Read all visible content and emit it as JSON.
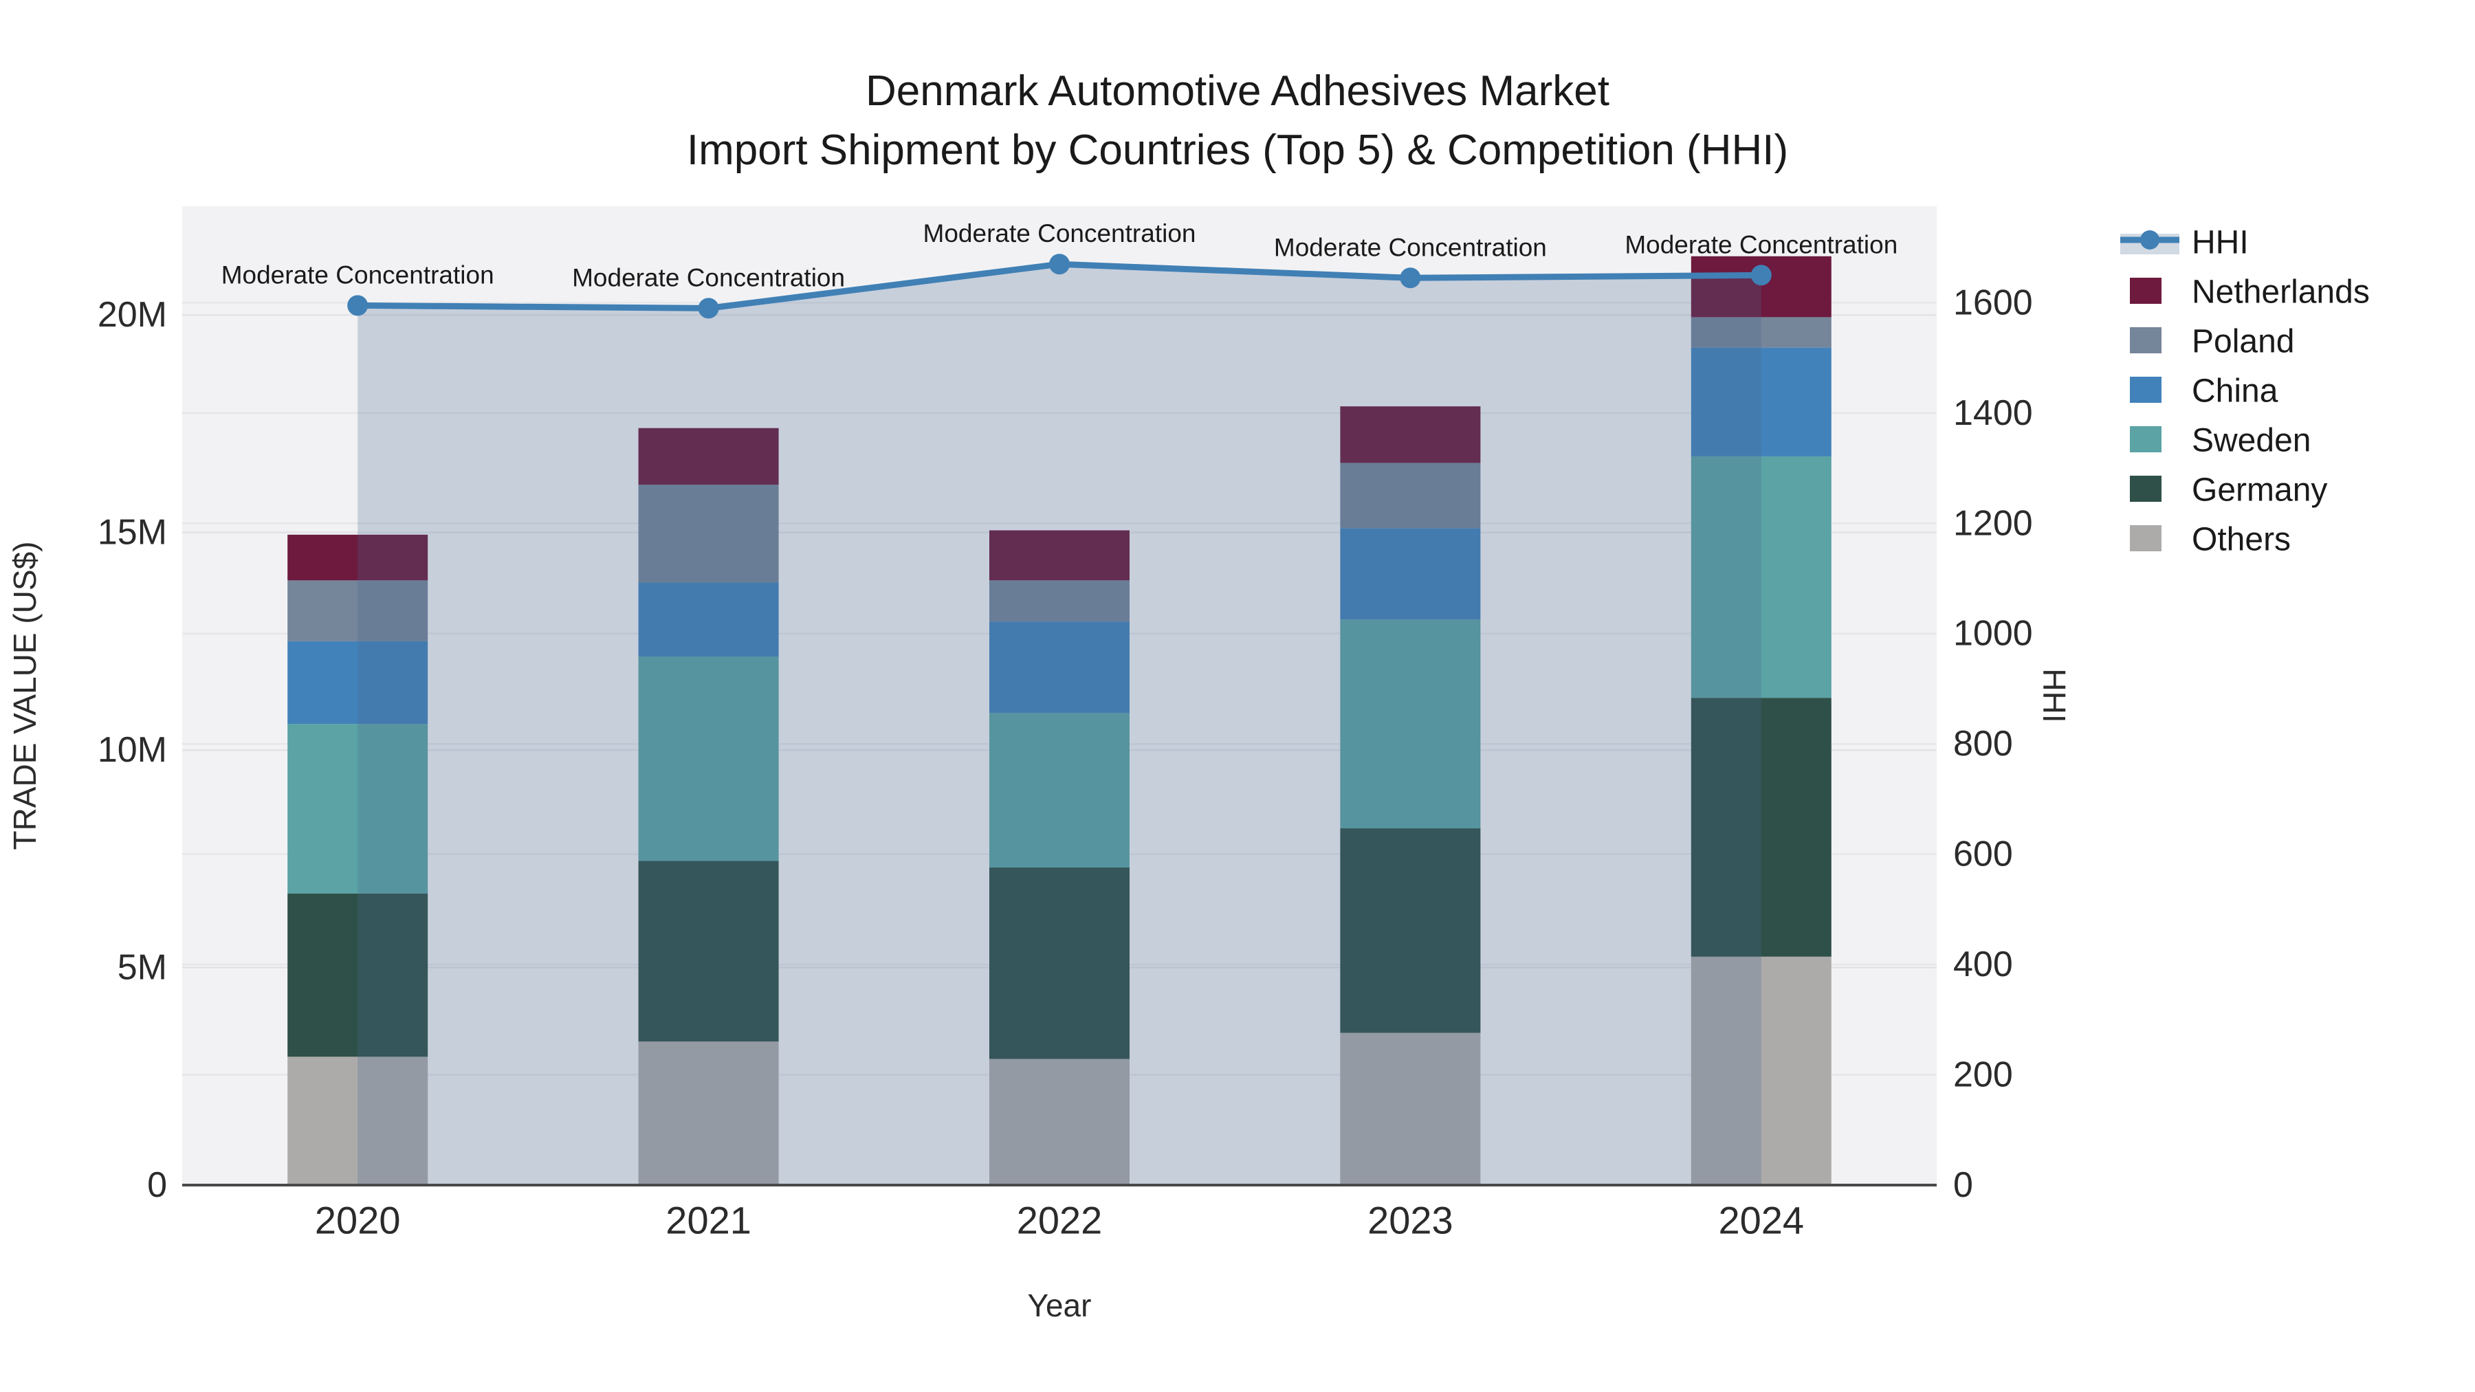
{
  "title": {
    "line1": "Denmark Automotive Adhesives Market",
    "line2": "Import Shipment by Countries (Top 5) & Competition (HHI)"
  },
  "axes": {
    "x_title": "Year",
    "y_left_title": "TRADE VALUE (US$)",
    "y_right_title": "HHI",
    "y_left_ticks": [
      {
        "v": 0,
        "label": "0"
      },
      {
        "v": 5,
        "label": "5M"
      },
      {
        "v": 10,
        "label": "10M"
      },
      {
        "v": 15,
        "label": "15M"
      },
      {
        "v": 20,
        "label": "20M"
      }
    ],
    "y_right_ticks": [
      {
        "v": 0,
        "label": "0"
      },
      {
        "v": 200,
        "label": "200"
      },
      {
        "v": 400,
        "label": "400"
      },
      {
        "v": 600,
        "label": "600"
      },
      {
        "v": 800,
        "label": "800"
      },
      {
        "v": 1000,
        "label": "1000"
      },
      {
        "v": 1200,
        "label": "1200"
      },
      {
        "v": 1400,
        "label": "1400"
      },
      {
        "v": 1600,
        "label": "1600"
      }
    ]
  },
  "legend": {
    "items": [
      {
        "label": "HHI",
        "type": "line",
        "color": "#4080b5",
        "band": "rgba(70,104,144,0.25)"
      },
      {
        "label": "Netherlands",
        "type": "swatch",
        "color": "#6d1a3e"
      },
      {
        "label": "Poland",
        "type": "swatch",
        "color": "#75859a"
      },
      {
        "label": "China",
        "type": "swatch",
        "color": "#4282ba"
      },
      {
        "label": "Sweden",
        "type": "swatch",
        "color": "#5ba3a5"
      },
      {
        "label": "Germany",
        "type": "swatch",
        "color": "#2f5049"
      },
      {
        "label": "Others",
        "type": "swatch",
        "color": "#adabaa"
      }
    ]
  },
  "chart_data": {
    "type": "bar+line",
    "categories": [
      "2020",
      "2021",
      "2022",
      "2023",
      "2024"
    ],
    "bar_unit": "million US$",
    "series": [
      {
        "name": "Others",
        "color": "#adabaa",
        "values": [
          2.95,
          3.3,
          2.9,
          3.5,
          5.25
        ]
      },
      {
        "name": "Germany",
        "color": "#2f5049",
        "values": [
          3.75,
          4.15,
          4.4,
          4.7,
          5.95
        ]
      },
      {
        "name": "Sweden",
        "color": "#5ba3a5",
        "values": [
          3.9,
          4.7,
          3.55,
          4.8,
          5.55
        ]
      },
      {
        "name": "China",
        "color": "#4282ba",
        "values": [
          1.9,
          1.7,
          2.1,
          2.1,
          2.5
        ]
      },
      {
        "name": "Poland",
        "color": "#75859a",
        "values": [
          1.4,
          2.25,
          0.95,
          1.5,
          0.7
        ]
      },
      {
        "name": "Netherlands",
        "color": "#6d1a3e",
        "values": [
          1.05,
          1.3,
          1.15,
          1.3,
          1.4
        ]
      }
    ],
    "bar_totals": [
      14.95,
      17.4,
      15.05,
      17.9,
      21.35
    ],
    "line_series": {
      "name": "HHI",
      "color": "#4080b5",
      "fill": "rgba(70,104,144,0.25)",
      "values": [
        1595,
        1590,
        1670,
        1645,
        1650
      ]
    },
    "annotations": [
      "Moderate Concentration",
      "Moderate Concentration",
      "Moderate Concentration",
      "Moderate Concentration",
      "Moderate Concentration"
    ],
    "title": "Denmark Automotive Adhesives Market — Import Shipment by Countries (Top 5) & Competition (HHI)",
    "xlabel": "Year",
    "ylabel_left": "TRADE VALUE (US$)",
    "ylabel_right": "HHI",
    "ylim_left": [
      0,
      22.5
    ],
    "ylim_right": [
      0,
      1775
    ],
    "grid": true,
    "legend_position": "right"
  }
}
